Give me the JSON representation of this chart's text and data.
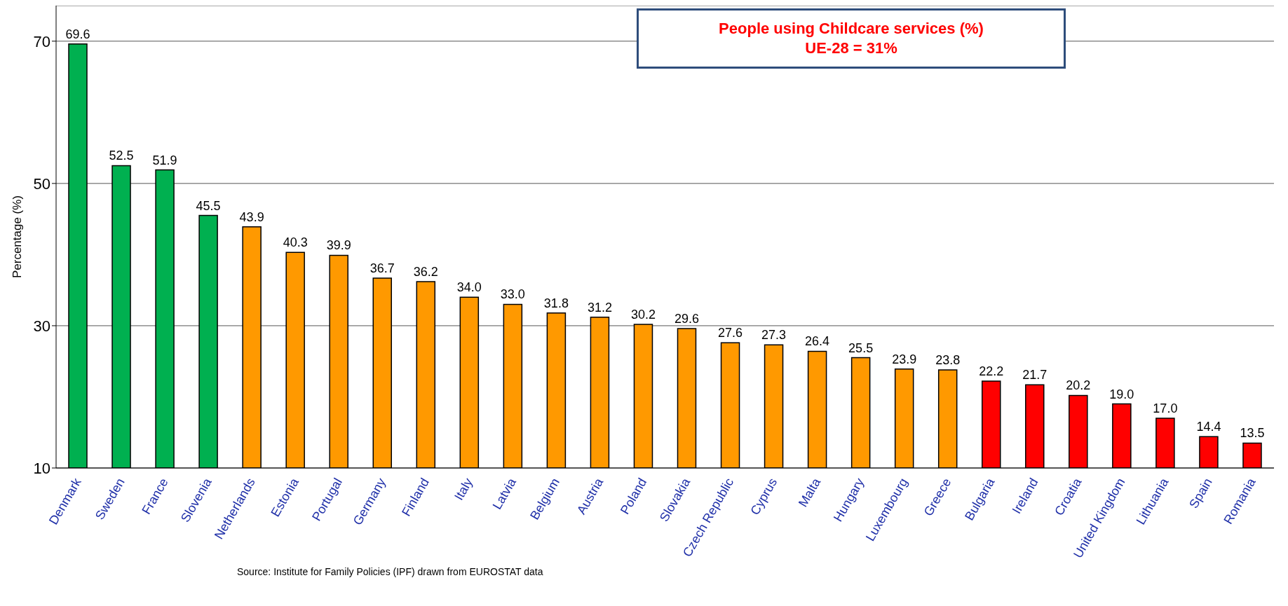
{
  "chart_data": {
    "type": "bar",
    "title": "People using Childcare services (%)",
    "subtitle": "UE-28 = 31%",
    "ylabel": "Percentage (%)",
    "categories": [
      "Denmark",
      "Sweden",
      "France",
      "Slovenia",
      "Netherlands",
      "Estonia",
      "Portugal",
      "Germany",
      "Finland",
      "Italy",
      "Latvia",
      "Belgium",
      "Austria",
      "Poland",
      "Slovakia",
      "Czech Republic",
      "Cyprus",
      "Malta",
      "Hungary",
      "Luxembourg",
      "Greece",
      "Bulgaria",
      "Ireland",
      "Croatia",
      "United Kingdom",
      "Lithuania",
      "Spain",
      "Romania"
    ],
    "values": [
      69.6,
      52.5,
      51.9,
      45.5,
      43.9,
      40.3,
      39.9,
      36.7,
      36.2,
      34.0,
      33.0,
      31.8,
      31.2,
      30.2,
      29.6,
      27.6,
      27.3,
      26.4,
      25.5,
      23.9,
      23.8,
      22.2,
      21.7,
      20.2,
      19.0,
      17.0,
      14.4,
      13.5
    ],
    "value_labels": [
      "69.6",
      "52.5",
      "51.9",
      "45.5",
      "43.9",
      "40.3",
      "39.9",
      "36.7",
      "36.2",
      "34.0",
      "33.0",
      "31.8",
      "31.2",
      "30.2",
      "29.6",
      "27.6",
      "27.3",
      "26.4",
      "25.5",
      "23.9",
      "23.8",
      "22.2",
      "21.7",
      "20.2",
      "19.0",
      "17.0",
      "14.4",
      "13.5"
    ],
    "colors": [
      "#00b050",
      "#00b050",
      "#00b050",
      "#00b050",
      "#ff9900",
      "#ff9900",
      "#ff9900",
      "#ff9900",
      "#ff9900",
      "#ff9900",
      "#ff9900",
      "#ff9900",
      "#ff9900",
      "#ff9900",
      "#ff9900",
      "#ff9900",
      "#ff9900",
      "#ff9900",
      "#ff9900",
      "#ff9900",
      "#ff9900",
      "#ff0000",
      "#ff0000",
      "#ff0000",
      "#ff0000",
      "#ff0000",
      "#ff0000",
      "#ff0000"
    ],
    "ylim": [
      10,
      75
    ],
    "yticks": [
      10,
      30,
      50,
      70
    ],
    "grid": "y",
    "annotations": [
      "Source: Institute for Family Policies (IPF) drawn from EUROSTAT data"
    ]
  }
}
